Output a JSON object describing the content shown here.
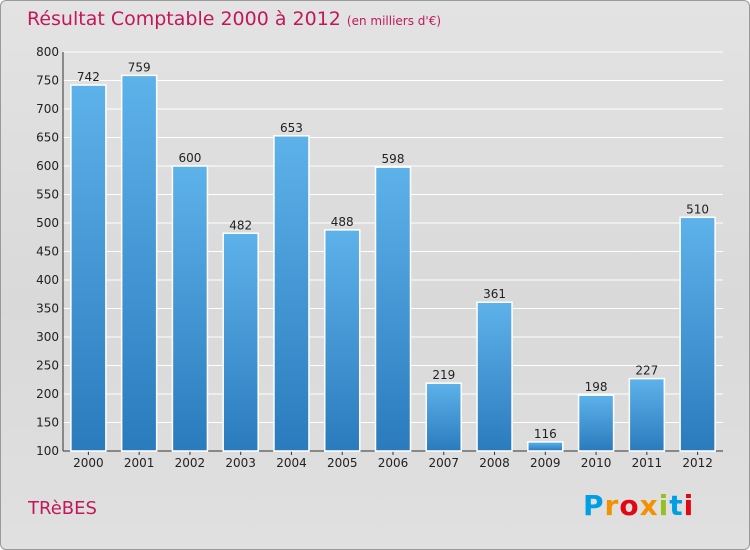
{
  "header": {
    "title": "Résultat Comptable 2000 à 2012",
    "subtitle": "(en milliers d'€)"
  },
  "footer": {
    "city": "TRèBES",
    "logo_text": "Proxiti"
  },
  "colors": {
    "bar_top": "#5eb2ea",
    "bar_bottom": "#2a7bbd",
    "title": "#c2185b",
    "grid": "#ffffff"
  },
  "chart_data": {
    "type": "bar",
    "title": "Résultat Comptable 2000 à 2012",
    "subtitle": "(en milliers d'€)",
    "xlabel": "",
    "ylabel": "",
    "categories": [
      "2000",
      "2001",
      "2002",
      "2003",
      "2004",
      "2005",
      "2006",
      "2007",
      "2008",
      "2009",
      "2010",
      "2011",
      "2012"
    ],
    "values": [
      742,
      759,
      600,
      482,
      653,
      488,
      598,
      219,
      361,
      116,
      198,
      227,
      510
    ],
    "ylim": [
      100,
      800
    ],
    "yticks": [
      100,
      150,
      200,
      250,
      300,
      350,
      400,
      450,
      500,
      550,
      600,
      650,
      700,
      750,
      800
    ],
    "grid": true
  }
}
